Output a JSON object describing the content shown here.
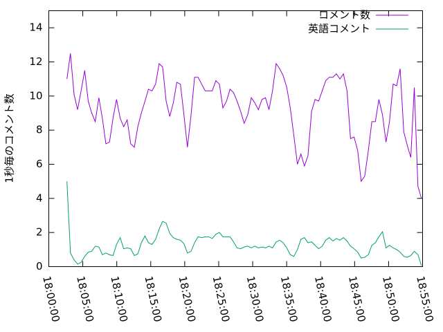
{
  "chart_data": {
    "type": "line",
    "y_label": "1秒毎のコメント数",
    "x": [
      "18:02:40",
      "18:03:11",
      "18:03:43",
      "18:04:14",
      "18:04:45",
      "18:05:17",
      "18:05:48",
      "18:06:19",
      "18:06:50",
      "18:07:22",
      "18:07:53",
      "18:08:24",
      "18:08:56",
      "18:09:27",
      "18:09:58",
      "18:10:30",
      "18:11:01",
      "18:11:32",
      "18:12:03",
      "18:12:35",
      "18:13:06",
      "18:13:37",
      "18:14:09",
      "18:14:40",
      "18:15:11",
      "18:15:43",
      "18:16:14",
      "18:16:45",
      "18:17:16",
      "18:17:48",
      "18:18:19",
      "18:18:50",
      "18:19:22",
      "18:19:53",
      "18:20:24",
      "18:20:56",
      "18:21:27",
      "18:21:58",
      "18:22:29",
      "18:23:01",
      "18:23:32",
      "18:24:03",
      "18:24:35",
      "18:25:06",
      "18:25:37",
      "18:26:09",
      "18:26:40",
      "18:27:11",
      "18:27:42",
      "18:28:14",
      "18:28:45",
      "18:29:16",
      "18:29:48",
      "18:30:19",
      "18:30:50",
      "18:31:22",
      "18:31:53",
      "18:32:24",
      "18:32:55",
      "18:33:27",
      "18:33:58",
      "18:34:29",
      "18:35:01",
      "18:35:32",
      "18:36:03",
      "18:36:35",
      "18:37:06",
      "18:37:37",
      "18:38:08",
      "18:38:40",
      "18:39:11",
      "18:39:42",
      "18:40:14",
      "18:40:45",
      "18:41:16",
      "18:41:48",
      "18:42:19",
      "18:42:50",
      "18:43:21",
      "18:43:53",
      "18:44:24",
      "18:44:55",
      "18:45:27",
      "18:45:58",
      "18:46:29",
      "18:47:01",
      "18:47:32",
      "18:48:03",
      "18:48:34",
      "18:49:06",
      "18:49:37",
      "18:50:08",
      "18:50:40",
      "18:51:11",
      "18:51:42",
      "18:52:14",
      "18:52:45",
      "18:53:16",
      "18:53:47",
      "18:54:19",
      "18:54:50"
    ],
    "series": [
      {
        "name": "コメント数",
        "color": "#9400d3",
        "values": [
          11.0,
          12.5,
          10.1,
          9.2,
          10.3,
          11.5,
          9.7,
          9.0,
          8.5,
          9.9,
          8.7,
          7.2,
          7.3,
          8.7,
          9.8,
          8.7,
          8.2,
          8.6,
          7.2,
          7.0,
          8.2,
          9.0,
          9.7,
          10.4,
          10.3,
          10.7,
          11.9,
          11.7,
          9.7,
          8.8,
          9.6,
          10.8,
          10.7,
          8.9,
          7.0,
          8.9,
          11.1,
          11.1,
          10.7,
          10.3,
          10.3,
          10.3,
          10.9,
          10.7,
          9.3,
          9.7,
          10.4,
          10.2,
          9.7,
          9.1,
          8.4,
          8.9,
          9.9,
          9.6,
          9.2,
          9.8,
          9.9,
          9.2,
          10.3,
          11.9,
          11.6,
          11.2,
          10.5,
          9.3,
          7.7,
          6.0,
          6.6,
          5.9,
          6.5,
          9.1,
          9.8,
          9.7,
          10.3,
          10.9,
          11.1,
          11.1,
          11.3,
          11.0,
          11.3,
          10.3,
          7.5,
          7.6,
          6.8,
          5.0,
          5.3,
          6.8,
          8.5,
          8.5,
          9.8,
          8.9,
          7.3,
          8.5,
          10.7,
          10.6,
          11.6,
          7.9,
          7.1,
          6.4,
          10.5,
          4.7,
          4.0
        ]
      },
      {
        "name": "英語コメント",
        "color": "#009e73",
        "values": [
          5.0,
          0.8,
          0.4,
          0.15,
          0.25,
          0.6,
          0.85,
          0.9,
          1.2,
          1.15,
          0.7,
          0.8,
          0.7,
          0.65,
          1.3,
          1.7,
          1.05,
          1.1,
          1.05,
          0.65,
          0.75,
          1.4,
          1.8,
          1.4,
          1.3,
          1.6,
          2.2,
          2.65,
          2.55,
          1.95,
          1.7,
          1.6,
          1.55,
          1.35,
          0.8,
          0.9,
          1.4,
          1.75,
          1.7,
          1.75,
          1.75,
          1.65,
          1.9,
          2.0,
          1.75,
          1.75,
          1.75,
          1.45,
          1.1,
          1.05,
          1.15,
          1.2,
          1.1,
          1.2,
          1.1,
          1.15,
          1.1,
          1.2,
          1.1,
          1.45,
          1.55,
          1.4,
          1.1,
          0.7,
          0.6,
          1.0,
          1.6,
          1.7,
          1.4,
          1.45,
          1.25,
          1.05,
          1.2,
          1.55,
          1.7,
          1.5,
          1.65,
          1.55,
          1.7,
          1.5,
          1.2,
          1.05,
          0.85,
          0.5,
          0.55,
          0.7,
          1.25,
          1.4,
          1.75,
          2.05,
          1.1,
          1.25,
          1.1,
          1.0,
          0.85,
          0.6,
          0.55,
          0.65,
          0.9,
          0.7,
          0.05
        ]
      }
    ],
    "xlim": [
      "18:00:00",
      "18:55:00"
    ],
    "xticks": [
      "18:00:00",
      "18:05:00",
      "18:10:00",
      "18:15:00",
      "18:20:00",
      "18:25:00",
      "18:30:00",
      "18:35:00",
      "18:40:00",
      "18:45:00",
      "18:50:00",
      "18:55:00"
    ],
    "ylim": [
      0,
      15
    ],
    "yticks": [
      0,
      2,
      4,
      6,
      8,
      10,
      12,
      14
    ],
    "legend": "top-right"
  }
}
